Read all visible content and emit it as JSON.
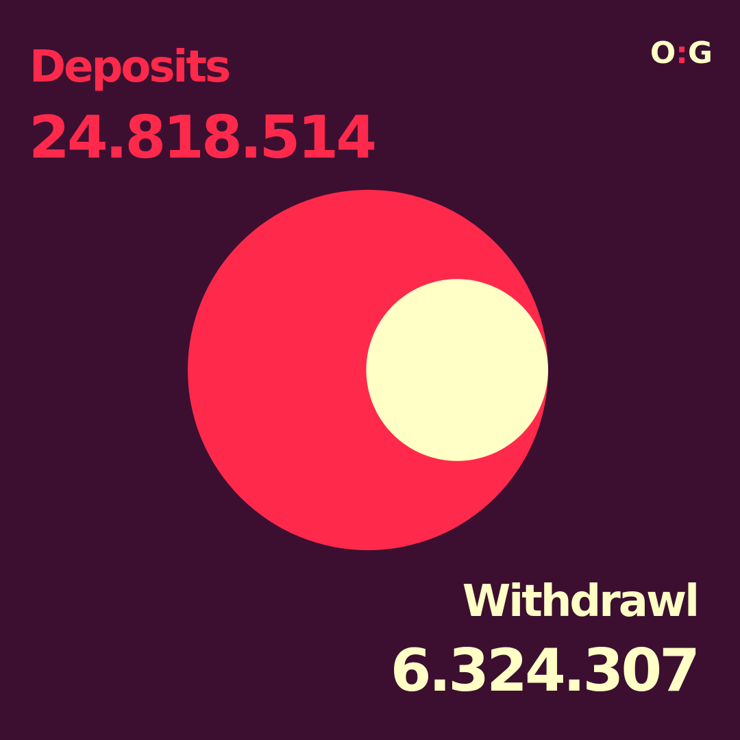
{
  "logo": {
    "left": "O",
    "separator": ":",
    "right": "G"
  },
  "colors": {
    "background": "#3c0f31",
    "deposits": "#ff2a4b",
    "withdrawl": "#ffffc6"
  },
  "chart_data": {
    "type": "area",
    "shape": "nested-circles",
    "series": [
      {
        "name": "Deposits",
        "value_label": "24.818.514",
        "value": 24818514
      },
      {
        "name": "Withdrawl",
        "value_label": "6.324.307",
        "value": 6324307
      }
    ]
  }
}
